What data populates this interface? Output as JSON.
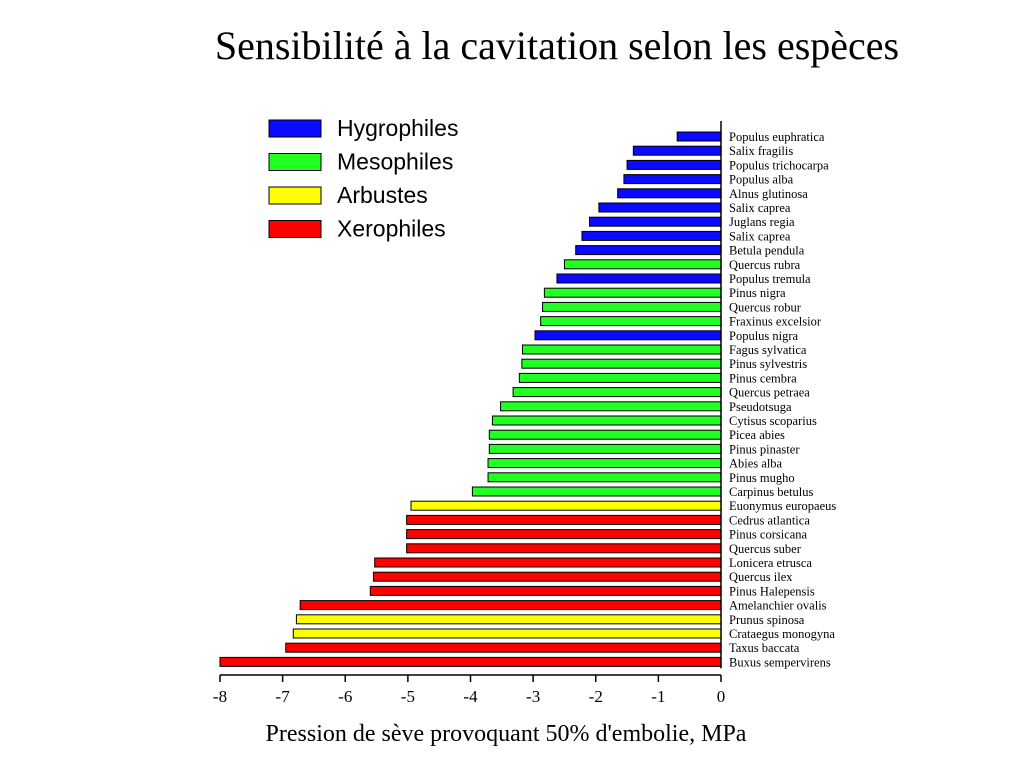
{
  "chart_data": {
    "type": "bar",
    "orientation": "horizontal",
    "title": "Sensibilité à la cavitation selon les espèces",
    "xlabel": "Pression de sève provoquant 50% d'embolie, MPa",
    "xlim": [
      -8,
      0
    ],
    "xticks": [
      "-8",
      "-7",
      "-6",
      "-5",
      "-4",
      "-3",
      "-2",
      "-1",
      "0"
    ],
    "legend_placement": "top-left",
    "grid": false,
    "groups": [
      {
        "key": "hyg",
        "name": "Hygrophiles",
        "color": "#0a0aff"
      },
      {
        "key": "mes",
        "name": "Mesophiles",
        "color": "#22ff22"
      },
      {
        "key": "arb",
        "name": "Arbustes",
        "color": "#ffff00"
      },
      {
        "key": "xer",
        "name": "Xerophiles",
        "color": "#ff0000"
      }
    ],
    "bars": [
      {
        "species": "Populus euphratica",
        "value": -0.7,
        "group": "hyg"
      },
      {
        "species": "Salix fragilis",
        "value": -1.4,
        "group": "hyg"
      },
      {
        "species": "Populus trichocarpa",
        "value": -1.5,
        "group": "hyg"
      },
      {
        "species": "Populus alba",
        "value": -1.55,
        "group": "hyg"
      },
      {
        "species": "Alnus glutinosa",
        "value": -1.65,
        "group": "hyg"
      },
      {
        "species": "Salix caprea",
        "value": -1.95,
        "group": "hyg"
      },
      {
        "species": "Juglans regia",
        "value": -2.1,
        "group": "hyg"
      },
      {
        "species": "Salix caprea",
        "value": -2.22,
        "group": "hyg"
      },
      {
        "species": "Betula pendula",
        "value": -2.32,
        "group": "hyg"
      },
      {
        "species": "Quercus rubra",
        "value": -2.5,
        "group": "mes"
      },
      {
        "species": "Populus tremula",
        "value": -2.62,
        "group": "hyg"
      },
      {
        "species": "Pinus nigra",
        "value": -2.82,
        "group": "mes"
      },
      {
        "species": "Quercus robur",
        "value": -2.85,
        "group": "mes"
      },
      {
        "species": "Fraxinus excelsior",
        "value": -2.88,
        "group": "mes"
      },
      {
        "species": "Populus nigra",
        "value": -2.97,
        "group": "hyg"
      },
      {
        "species": "Fagus sylvatica",
        "value": -3.17,
        "group": "mes"
      },
      {
        "species": "Pinus sylvestris",
        "value": -3.18,
        "group": "mes"
      },
      {
        "species": "Pinus cembra",
        "value": -3.22,
        "group": "mes"
      },
      {
        "species": "Quercus petraea",
        "value": -3.32,
        "group": "mes"
      },
      {
        "species": "Pseudotsuga",
        "value": -3.52,
        "group": "mes"
      },
      {
        "species": "Cytisus scoparius",
        "value": -3.65,
        "group": "mes"
      },
      {
        "species": "Picea abies",
        "value": -3.7,
        "group": "mes"
      },
      {
        "species": "Pinus pinaster",
        "value": -3.7,
        "group": "mes"
      },
      {
        "species": "Abies alba",
        "value": -3.72,
        "group": "mes"
      },
      {
        "species": "Pinus mugho",
        "value": -3.72,
        "group": "mes"
      },
      {
        "species": "Carpinus betulus",
        "value": -3.97,
        "group": "mes"
      },
      {
        "species": "Euonymus europaeus",
        "value": -4.95,
        "group": "arb"
      },
      {
        "species": "Cedrus atlantica",
        "value": -5.02,
        "group": "xer"
      },
      {
        "species": "Pinus corsicana",
        "value": -5.02,
        "group": "xer"
      },
      {
        "species": "Quercus suber",
        "value": -5.02,
        "group": "xer"
      },
      {
        "species": "Lonicera etrusca",
        "value": -5.53,
        "group": "xer"
      },
      {
        "species": "Quercus ilex",
        "value": -5.55,
        "group": "xer"
      },
      {
        "species": "Pinus Halepensis",
        "value": -5.6,
        "group": "xer"
      },
      {
        "species": "Amelanchier ovalis",
        "value": -6.72,
        "group": "xer"
      },
      {
        "species": "Prunus spinosa",
        "value": -6.78,
        "group": "arb"
      },
      {
        "species": "Crataegus monogyna",
        "value": -6.83,
        "group": "arb"
      },
      {
        "species": "Taxus baccata",
        "value": -6.95,
        "group": "xer"
      },
      {
        "species": "Buxus sempervirens",
        "value": -8.0,
        "group": "xer"
      }
    ]
  }
}
